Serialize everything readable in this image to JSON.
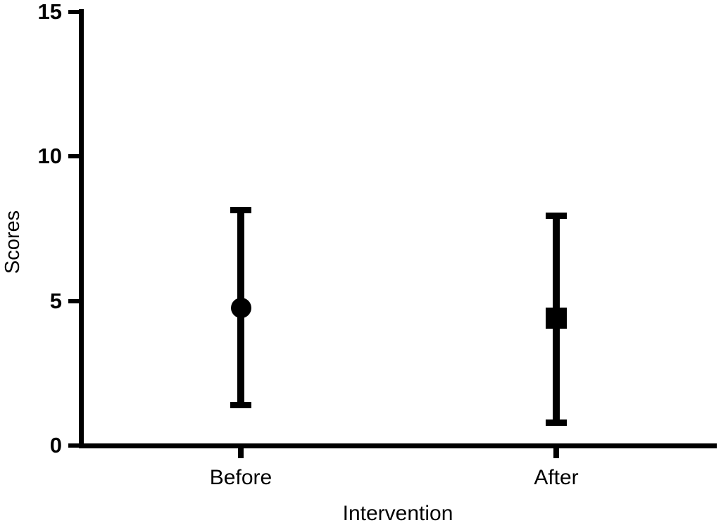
{
  "chart_data": {
    "type": "scatter",
    "title": "",
    "xlabel": "Intervention",
    "ylabel": "Scores",
    "categories": [
      "Before",
      "After"
    ],
    "y_ticks": [
      0,
      5,
      10,
      15
    ],
    "ylim": [
      0,
      15
    ],
    "grid": false,
    "legend": "none",
    "points": [
      {
        "category": "Before",
        "marker": "circle",
        "mean": 4.75,
        "upper": 8.15,
        "lower": 1.4
      },
      {
        "category": "After",
        "marker": "square",
        "mean": 4.4,
        "upper": 7.95,
        "lower": 0.8
      }
    ],
    "colors": {
      "ink": "#000000",
      "background": "#ffffff"
    }
  }
}
